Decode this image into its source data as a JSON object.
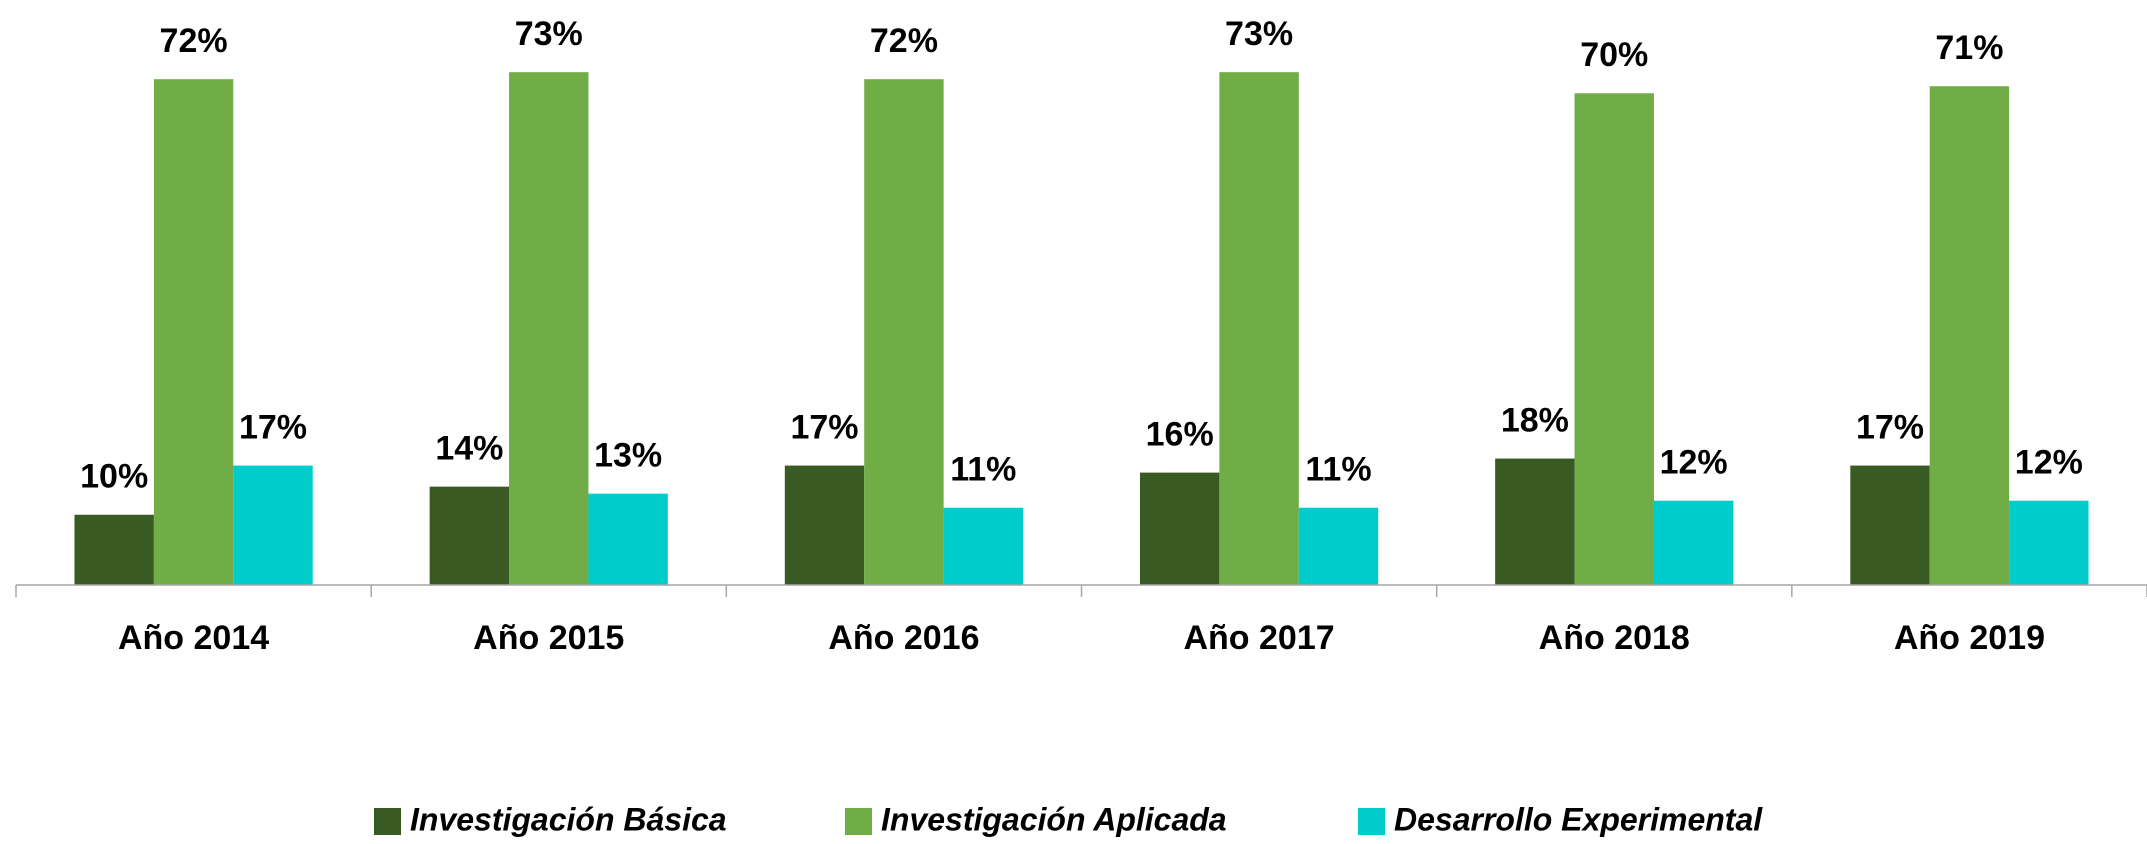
{
  "chart_data": {
    "type": "bar",
    "categories": [
      "Año 2014",
      "Año 2015",
      "Año 2016",
      "Año 2017",
      "Año 2018",
      "Año 2019"
    ],
    "series": [
      {
        "name": "Investigación Básica",
        "color": "#3a5a24",
        "values": [
          10,
          14,
          17,
          16,
          18,
          17
        ],
        "value_labels": [
          "10%",
          "14%",
          "17%",
          "16%",
          "18%",
          "17%"
        ]
      },
      {
        "name": "Investigación Aplicada",
        "color": "#70ad47",
        "values": [
          72,
          73,
          72,
          73,
          70,
          71
        ],
        "value_labels": [
          "72%",
          "73%",
          "72%",
          "73%",
          "70%",
          "71%"
        ]
      },
      {
        "name": "Desarrollo Experimental",
        "color": "#00cccc",
        "values": [
          17,
          13,
          11,
          11,
          12,
          12
        ],
        "value_labels": [
          "17%",
          "13%",
          "11%",
          "11%",
          "12%",
          "12%"
        ]
      }
    ],
    "ylim": [
      0,
      80
    ],
    "legend": "bottom"
  }
}
